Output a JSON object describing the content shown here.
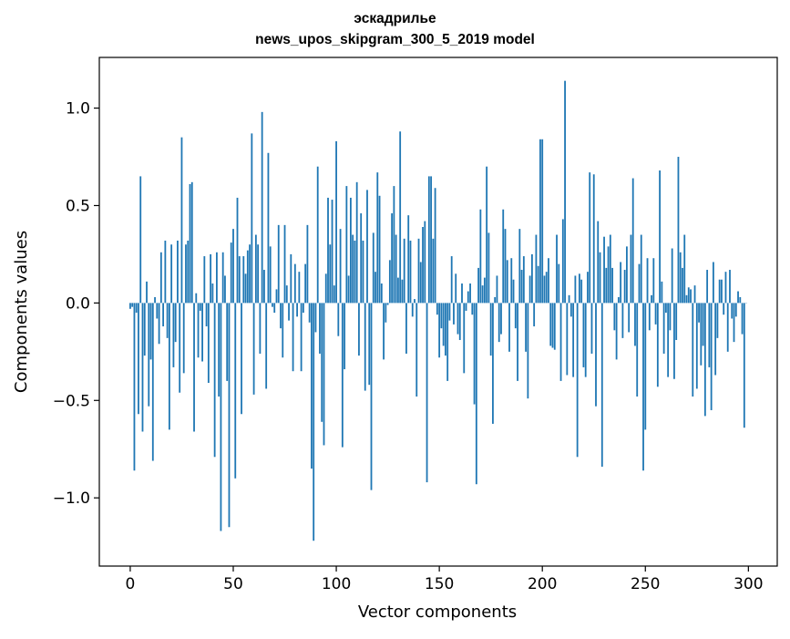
{
  "chart_data": {
    "type": "bar",
    "title": "эскадрилье",
    "subtitle": "news_upos_skipgram_300_5_2019 model",
    "xlabel": "Vector components",
    "ylabel": "Components values",
    "xlim": [
      -15,
      314
    ],
    "ylim": [
      -1.35,
      1.26
    ],
    "xticks": [
      0,
      50,
      100,
      150,
      200,
      250,
      300
    ],
    "xtick_labels": [
      "0",
      "50",
      "100",
      "150",
      "200",
      "250",
      "300"
    ],
    "yticks": [
      -1.0,
      -0.5,
      0.0,
      0.5,
      1.0
    ],
    "ytick_labels": [
      "−1.0",
      "−0.5",
      "0.0",
      "0.5",
      "1.0"
    ],
    "grid": false,
    "bar_color": "#1f77b4",
    "x": "0..299 (one bar per vector component)",
    "values": [
      -0.03,
      -0.02,
      -0.86,
      -0.05,
      -0.57,
      0.65,
      -0.66,
      -0.27,
      0.11,
      -0.53,
      -0.29,
      -0.81,
      0.03,
      -0.08,
      -0.21,
      0.26,
      -0.12,
      0.32,
      -0.18,
      -0.65,
      0.3,
      -0.33,
      -0.2,
      0.32,
      -0.46,
      0.85,
      -0.36,
      0.3,
      0.32,
      0.61,
      0.62,
      -0.66,
      0.05,
      -0.28,
      -0.04,
      -0.3,
      0.24,
      -0.12,
      -0.41,
      0.25,
      0.1,
      -0.79,
      0.26,
      -0.48,
      -1.17,
      0.26,
      0.14,
      -0.4,
      -1.15,
      0.31,
      0.38,
      -0.9,
      0.54,
      0.24,
      -0.57,
      0.24,
      0.15,
      0.27,
      0.3,
      0.87,
      -0.47,
      0.35,
      0.3,
      -0.26,
      0.98,
      0.17,
      -0.44,
      0.77,
      0.29,
      -0.02,
      -0.05,
      0.07,
      0.4,
      -0.13,
      -0.28,
      0.4,
      0.09,
      -0.09,
      0.25,
      -0.35,
      0.2,
      -0.07,
      0.16,
      -0.35,
      -0.05,
      0.2,
      0.4,
      -0.1,
      -0.85,
      -1.22,
      -0.15,
      0.7,
      -0.26,
      -0.61,
      -0.73,
      0.15,
      0.54,
      0.3,
      0.53,
      0.09,
      0.83,
      -0.17,
      0.38,
      -0.74,
      -0.34,
      0.6,
      0.14,
      0.54,
      0.35,
      0.32,
      0.62,
      -0.27,
      0.46,
      0.32,
      -0.45,
      0.58,
      -0.42,
      -0.96,
      0.36,
      0.16,
      0.67,
      0.55,
      0.1,
      -0.29,
      -0.1,
      -0.01,
      0.22,
      0.46,
      0.6,
      0.35,
      0.13,
      0.88,
      0.12,
      0.33,
      -0.26,
      0.45,
      0.32,
      -0.07,
      0.02,
      -0.48,
      0.33,
      0.21,
      0.39,
      0.42,
      -0.92,
      0.65,
      0.65,
      0.33,
      0.59,
      -0.06,
      -0.28,
      -0.13,
      -0.22,
      -0.27,
      -0.4,
      -0.09,
      0.24,
      -0.11,
      0.15,
      -0.16,
      -0.19,
      0.1,
      -0.36,
      -0.04,
      0.06,
      0.1,
      -0.06,
      -0.52,
      -0.93,
      0.18,
      0.48,
      0.09,
      0.13,
      0.7,
      0.36,
      -0.27,
      -0.62,
      0.03,
      0.14,
      -0.2,
      -0.16,
      0.48,
      0.38,
      0.22,
      -0.25,
      0.23,
      0.12,
      -0.13,
      -0.4,
      0.38,
      0.17,
      0.24,
      -0.25,
      -0.49,
      0.14,
      0.25,
      -0.12,
      0.35,
      0.19,
      0.84,
      0.84,
      0.14,
      0.16,
      0.23,
      -0.22,
      -0.23,
      -0.24,
      0.35,
      0.2,
      -0.4,
      0.43,
      1.14,
      -0.37,
      0.04,
      -0.07,
      -0.38,
      0.14,
      -0.79,
      0.15,
      0.12,
      -0.33,
      -0.38,
      0.16,
      0.67,
      -0.26,
      0.66,
      -0.53,
      0.42,
      0.26,
      -0.84,
      0.34,
      0.18,
      0.29,
      0.35,
      0.18,
      -0.14,
      -0.29,
      0.03,
      0.21,
      -0.18,
      0.17,
      0.29,
      -0.15,
      0.35,
      0.64,
      -0.22,
      -0.48,
      0.2,
      0.35,
      -0.86,
      -0.65,
      0.23,
      -0.14,
      0.04,
      0.23,
      -0.11,
      -0.43,
      0.68,
      0.11,
      -0.26,
      -0.05,
      -0.38,
      -0.14,
      0.28,
      -0.39,
      -0.19,
      0.75,
      0.26,
      0.18,
      0.35,
      0.04,
      0.08,
      0.07,
      -0.48,
      0.09,
      -0.44,
      -0.1,
      -0.32,
      -0.22,
      -0.58,
      0.17,
      -0.33,
      -0.55,
      0.21,
      -0.37,
      -0.18,
      0.12,
      0.12,
      -0.06,
      0.16,
      -0.25,
      0.17,
      -0.08,
      -0.2,
      -0.07,
      0.06,
      0.03,
      -0.16,
      -0.64,
      0.0
    ]
  }
}
